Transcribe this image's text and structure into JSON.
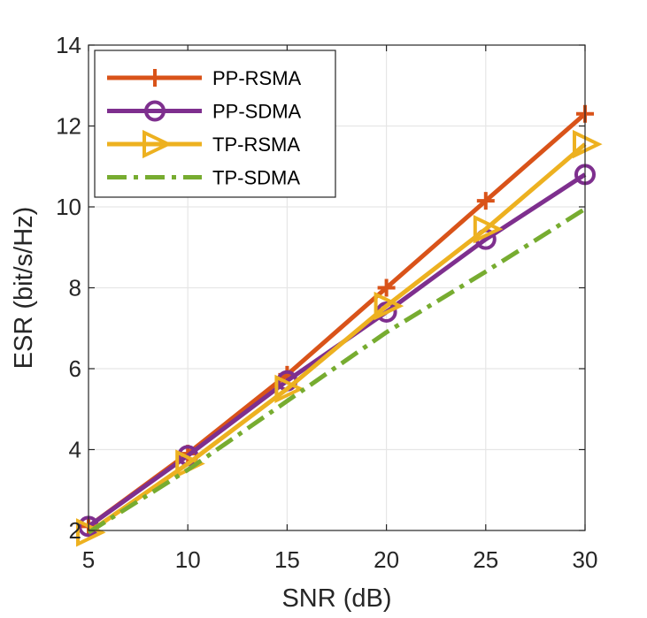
{
  "chart_data": {
    "type": "line",
    "title": "",
    "xlabel": "SNR (dB)",
    "ylabel": "ESR (bit/s/Hz)",
    "xlim": [
      5,
      30
    ],
    "ylim": [
      2,
      14
    ],
    "x": [
      5,
      10,
      15,
      20,
      25,
      30
    ],
    "xticks": [
      "5",
      "10",
      "15",
      "20",
      "25",
      "30"
    ],
    "yticks": [
      "2",
      "4",
      "6",
      "8",
      "10",
      "12",
      "14"
    ],
    "grid": true,
    "legend_position": "top-left",
    "series": [
      {
        "name": "PP-RSMA",
        "values": [
          2.1,
          3.9,
          5.85,
          8.0,
          10.15,
          12.3
        ],
        "color": "#D95319",
        "marker": "plus",
        "line": "solid"
      },
      {
        "name": "PP-SDMA",
        "values": [
          2.1,
          3.85,
          5.7,
          7.4,
          9.2,
          10.8
        ],
        "color": "#7E2F8E",
        "marker": "circle",
        "line": "solid"
      },
      {
        "name": "TP-RSMA",
        "values": [
          1.95,
          3.65,
          5.5,
          7.55,
          9.45,
          11.55
        ],
        "color": "#EDB120",
        "marker": "triangle-right",
        "line": "solid"
      },
      {
        "name": "TP-SDMA",
        "values": [
          1.95,
          3.5,
          5.2,
          6.9,
          8.4,
          9.95
        ],
        "color": "#77AC30",
        "marker": "none",
        "line": "dashdot"
      }
    ]
  }
}
